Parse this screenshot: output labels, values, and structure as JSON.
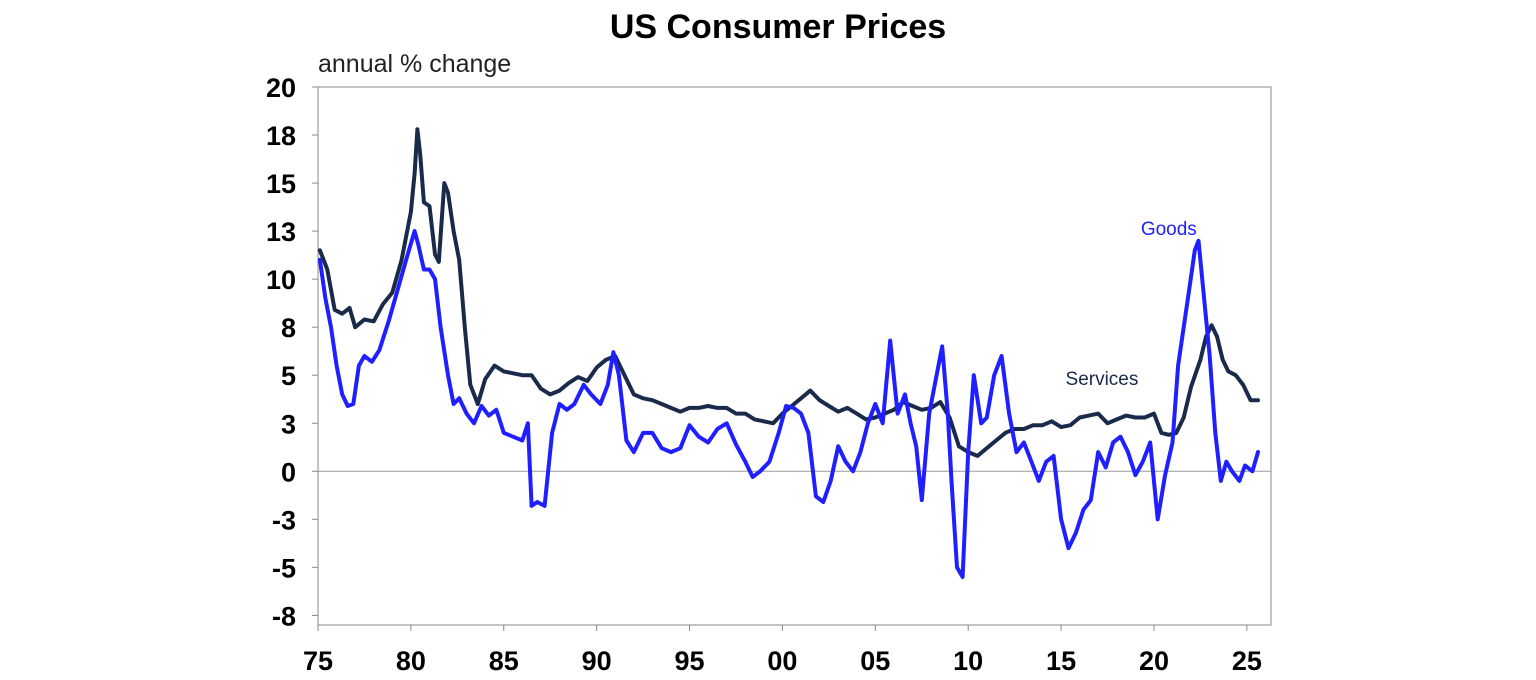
{
  "chart_data": {
    "type": "line",
    "title": "US Consumer Prices",
    "ylabel": "annual % change",
    "xlabel": "",
    "xlim": [
      1975,
      2026.3
    ],
    "ylim": [
      -8,
      20
    ],
    "y_ticks": [
      {
        "value": 20,
        "label": "20"
      },
      {
        "value": 17.5,
        "label": "18"
      },
      {
        "value": 15,
        "label": "15"
      },
      {
        "value": 12.5,
        "label": "13"
      },
      {
        "value": 10,
        "label": "10"
      },
      {
        "value": 7.5,
        "label": "8"
      },
      {
        "value": 5,
        "label": "5"
      },
      {
        "value": 2.5,
        "label": "3"
      },
      {
        "value": 0,
        "label": "0"
      },
      {
        "value": -2.5,
        "label": "-3"
      },
      {
        "value": -5,
        "label": "-5"
      },
      {
        "value": -7.5,
        "label": "-8"
      }
    ],
    "x_ticks": [
      {
        "value": 1975,
        "label": "75"
      },
      {
        "value": 1980,
        "label": "80"
      },
      {
        "value": 1985,
        "label": "85"
      },
      {
        "value": 1990,
        "label": "90"
      },
      {
        "value": 1995,
        "label": "95"
      },
      {
        "value": 2000,
        "label": "00"
      },
      {
        "value": 2005,
        "label": "05"
      },
      {
        "value": 2010,
        "label": "10"
      },
      {
        "value": 2015,
        "label": "15"
      },
      {
        "value": 2020,
        "label": "20"
      },
      {
        "value": 2025,
        "label": "25"
      }
    ],
    "series": [
      {
        "name": "Services",
        "color": "#1a2a4a",
        "points": [
          [
            1975.1,
            11.5
          ],
          [
            1975.5,
            10.5
          ],
          [
            1975.9,
            8.4
          ],
          [
            1976.3,
            8.2
          ],
          [
            1976.7,
            8.5
          ],
          [
            1977.0,
            7.5
          ],
          [
            1977.5,
            7.9
          ],
          [
            1978.0,
            7.8
          ],
          [
            1978.5,
            8.7
          ],
          [
            1979.0,
            9.3
          ],
          [
            1979.5,
            11.0
          ],
          [
            1980.0,
            13.5
          ],
          [
            1980.2,
            15.5
          ],
          [
            1980.35,
            17.8
          ],
          [
            1980.5,
            16.5
          ],
          [
            1980.7,
            14.0
          ],
          [
            1981.0,
            13.8
          ],
          [
            1981.3,
            11.3
          ],
          [
            1981.5,
            10.9
          ],
          [
            1981.8,
            15.0
          ],
          [
            1982.0,
            14.5
          ],
          [
            1982.3,
            12.5
          ],
          [
            1982.6,
            11.0
          ],
          [
            1982.9,
            7.5
          ],
          [
            1983.2,
            4.5
          ],
          [
            1983.6,
            3.5
          ],
          [
            1984.0,
            4.8
          ],
          [
            1984.5,
            5.5
          ],
          [
            1985.0,
            5.2
          ],
          [
            1985.5,
            5.1
          ],
          [
            1986.0,
            5.0
          ],
          [
            1986.5,
            5.0
          ],
          [
            1987.0,
            4.3
          ],
          [
            1987.5,
            4.0
          ],
          [
            1988.0,
            4.2
          ],
          [
            1988.5,
            4.6
          ],
          [
            1989.0,
            4.9
          ],
          [
            1989.5,
            4.7
          ],
          [
            1990.0,
            5.4
          ],
          [
            1990.5,
            5.8
          ],
          [
            1991.0,
            6.0
          ],
          [
            1991.5,
            5.0
          ],
          [
            1992.0,
            4.0
          ],
          [
            1992.5,
            3.8
          ],
          [
            1993.0,
            3.7
          ],
          [
            1993.5,
            3.5
          ],
          [
            1994.0,
            3.3
          ],
          [
            1994.5,
            3.1
          ],
          [
            1995.0,
            3.3
          ],
          [
            1995.5,
            3.3
          ],
          [
            1996.0,
            3.4
          ],
          [
            1996.5,
            3.3
          ],
          [
            1997.0,
            3.3
          ],
          [
            1997.5,
            3.0
          ],
          [
            1998.0,
            3.0
          ],
          [
            1998.5,
            2.7
          ],
          [
            1999.0,
            2.6
          ],
          [
            1999.5,
            2.5
          ],
          [
            2000.0,
            3.0
          ],
          [
            2000.5,
            3.4
          ],
          [
            2001.0,
            3.8
          ],
          [
            2001.5,
            4.2
          ],
          [
            2002.0,
            3.7
          ],
          [
            2002.5,
            3.4
          ],
          [
            2003.0,
            3.1
          ],
          [
            2003.5,
            3.3
          ],
          [
            2004.0,
            3.0
          ],
          [
            2004.5,
            2.7
          ],
          [
            2005.0,
            2.8
          ],
          [
            2005.5,
            3.0
          ],
          [
            2006.0,
            3.2
          ],
          [
            2006.5,
            3.6
          ],
          [
            2007.0,
            3.4
          ],
          [
            2007.5,
            3.2
          ],
          [
            2008.0,
            3.3
          ],
          [
            2008.5,
            3.6
          ],
          [
            2009.0,
            2.8
          ],
          [
            2009.5,
            1.3
          ],
          [
            2010.0,
            1.0
          ],
          [
            2010.5,
            0.8
          ],
          [
            2011.0,
            1.2
          ],
          [
            2011.5,
            1.6
          ],
          [
            2012.0,
            2.0
          ],
          [
            2012.5,
            2.2
          ],
          [
            2013.0,
            2.2
          ],
          [
            2013.5,
            2.4
          ],
          [
            2014.0,
            2.4
          ],
          [
            2014.5,
            2.6
          ],
          [
            2015.0,
            2.3
          ],
          [
            2015.5,
            2.4
          ],
          [
            2016.0,
            2.8
          ],
          [
            2016.5,
            2.9
          ],
          [
            2017.0,
            3.0
          ],
          [
            2017.5,
            2.5
          ],
          [
            2018.0,
            2.7
          ],
          [
            2018.5,
            2.9
          ],
          [
            2019.0,
            2.8
          ],
          [
            2019.5,
            2.8
          ],
          [
            2020.0,
            3.0
          ],
          [
            2020.4,
            2.0
          ],
          [
            2020.8,
            1.9
          ],
          [
            2021.2,
            2.0
          ],
          [
            2021.6,
            2.8
          ],
          [
            2022.0,
            4.4
          ],
          [
            2022.5,
            5.8
          ],
          [
            2022.8,
            7.0
          ],
          [
            2023.1,
            7.6
          ],
          [
            2023.4,
            7.0
          ],
          [
            2023.7,
            5.8
          ],
          [
            2024.0,
            5.2
          ],
          [
            2024.4,
            5.0
          ],
          [
            2024.8,
            4.5
          ],
          [
            2025.2,
            3.7
          ],
          [
            2025.6,
            3.7
          ]
        ]
      },
      {
        "name": "Goods",
        "color": "#1f1fff",
        "points": [
          [
            1975.1,
            11.0
          ],
          [
            1975.4,
            9.0
          ],
          [
            1975.7,
            7.5
          ],
          [
            1976.0,
            5.5
          ],
          [
            1976.3,
            4.0
          ],
          [
            1976.6,
            3.4
          ],
          [
            1976.9,
            3.5
          ],
          [
            1977.2,
            5.5
          ],
          [
            1977.5,
            6.0
          ],
          [
            1977.9,
            5.7
          ],
          [
            1978.3,
            6.3
          ],
          [
            1978.8,
            7.8
          ],
          [
            1979.3,
            9.5
          ],
          [
            1979.8,
            11.2
          ],
          [
            1980.2,
            12.5
          ],
          [
            1980.4,
            11.8
          ],
          [
            1980.7,
            10.5
          ],
          [
            1981.0,
            10.5
          ],
          [
            1981.3,
            10.0
          ],
          [
            1981.6,
            7.5
          ],
          [
            1982.0,
            5.0
          ],
          [
            1982.3,
            3.5
          ],
          [
            1982.6,
            3.8
          ],
          [
            1983.0,
            3.0
          ],
          [
            1983.4,
            2.5
          ],
          [
            1983.8,
            3.4
          ],
          [
            1984.2,
            2.9
          ],
          [
            1984.6,
            3.2
          ],
          [
            1985.0,
            2.0
          ],
          [
            1985.5,
            1.8
          ],
          [
            1986.0,
            1.6
          ],
          [
            1986.3,
            2.5
          ],
          [
            1986.5,
            -1.8
          ],
          [
            1986.8,
            -1.6
          ],
          [
            1987.2,
            -1.8
          ],
          [
            1987.6,
            2.0
          ],
          [
            1988.0,
            3.5
          ],
          [
            1988.4,
            3.2
          ],
          [
            1988.8,
            3.5
          ],
          [
            1989.3,
            4.5
          ],
          [
            1989.7,
            4.0
          ],
          [
            1990.2,
            3.5
          ],
          [
            1990.6,
            4.5
          ],
          [
            1990.9,
            6.2
          ],
          [
            1991.2,
            5.0
          ],
          [
            1991.6,
            1.6
          ],
          [
            1992.0,
            1.0
          ],
          [
            1992.5,
            2.0
          ],
          [
            1993.0,
            2.0
          ],
          [
            1993.5,
            1.2
          ],
          [
            1994.0,
            1.0
          ],
          [
            1994.5,
            1.2
          ],
          [
            1995.0,
            2.4
          ],
          [
            1995.5,
            1.8
          ],
          [
            1996.0,
            1.5
          ],
          [
            1996.5,
            2.2
          ],
          [
            1997.0,
            2.5
          ],
          [
            1997.5,
            1.4
          ],
          [
            1998.0,
            0.5
          ],
          [
            1998.4,
            -0.3
          ],
          [
            1998.8,
            0.0
          ],
          [
            1999.3,
            0.5
          ],
          [
            1999.8,
            2.0
          ],
          [
            2000.2,
            3.4
          ],
          [
            2000.6,
            3.3
          ],
          [
            2001.0,
            3.0
          ],
          [
            2001.4,
            2.0
          ],
          [
            2001.8,
            -1.3
          ],
          [
            2002.2,
            -1.6
          ],
          [
            2002.6,
            -0.5
          ],
          [
            2003.0,
            1.3
          ],
          [
            2003.4,
            0.5
          ],
          [
            2003.8,
            0.0
          ],
          [
            2004.2,
            1.0
          ],
          [
            2004.6,
            2.5
          ],
          [
            2005.0,
            3.5
          ],
          [
            2005.4,
            2.5
          ],
          [
            2005.8,
            6.8
          ],
          [
            2006.2,
            3.0
          ],
          [
            2006.6,
            4.0
          ],
          [
            2006.9,
            2.5
          ],
          [
            2007.2,
            1.3
          ],
          [
            2007.5,
            -1.5
          ],
          [
            2007.9,
            3.0
          ],
          [
            2008.3,
            5.0
          ],
          [
            2008.6,
            6.5
          ],
          [
            2008.9,
            3.0
          ],
          [
            2009.1,
            -0.5
          ],
          [
            2009.4,
            -5.0
          ],
          [
            2009.7,
            -5.5
          ],
          [
            2010.0,
            1.0
          ],
          [
            2010.3,
            5.0
          ],
          [
            2010.7,
            2.5
          ],
          [
            2011.0,
            2.8
          ],
          [
            2011.4,
            5.0
          ],
          [
            2011.8,
            6.0
          ],
          [
            2012.2,
            3.0
          ],
          [
            2012.6,
            1.0
          ],
          [
            2013.0,
            1.5
          ],
          [
            2013.4,
            0.5
          ],
          [
            2013.8,
            -0.5
          ],
          [
            2014.2,
            0.5
          ],
          [
            2014.6,
            0.8
          ],
          [
            2015.0,
            -2.5
          ],
          [
            2015.4,
            -4.0
          ],
          [
            2015.8,
            -3.2
          ],
          [
            2016.2,
            -2.0
          ],
          [
            2016.6,
            -1.5
          ],
          [
            2017.0,
            1.0
          ],
          [
            2017.4,
            0.2
          ],
          [
            2017.8,
            1.5
          ],
          [
            2018.2,
            1.8
          ],
          [
            2018.6,
            1.0
          ],
          [
            2019.0,
            -0.2
          ],
          [
            2019.4,
            0.5
          ],
          [
            2019.8,
            1.5
          ],
          [
            2020.2,
            -2.5
          ],
          [
            2020.6,
            -0.2
          ],
          [
            2021.0,
            1.5
          ],
          [
            2021.3,
            5.5
          ],
          [
            2021.6,
            7.5
          ],
          [
            2021.9,
            9.5
          ],
          [
            2022.2,
            11.5
          ],
          [
            2022.4,
            12.0
          ],
          [
            2022.7,
            9.0
          ],
          [
            2023.0,
            6.0
          ],
          [
            2023.3,
            2.0
          ],
          [
            2023.6,
            -0.5
          ],
          [
            2023.9,
            0.5
          ],
          [
            2024.2,
            0.0
          ],
          [
            2024.6,
            -0.5
          ],
          [
            2024.9,
            0.3
          ],
          [
            2025.3,
            0.0
          ],
          [
            2025.6,
            1.0
          ]
        ]
      }
    ],
    "annotations": [
      {
        "text": "Goods",
        "series": "Goods",
        "x": 2020.8,
        "y": 12.3
      },
      {
        "text": "Services",
        "series": "Services",
        "x": 2017.2,
        "y": 4.5
      }
    ]
  }
}
